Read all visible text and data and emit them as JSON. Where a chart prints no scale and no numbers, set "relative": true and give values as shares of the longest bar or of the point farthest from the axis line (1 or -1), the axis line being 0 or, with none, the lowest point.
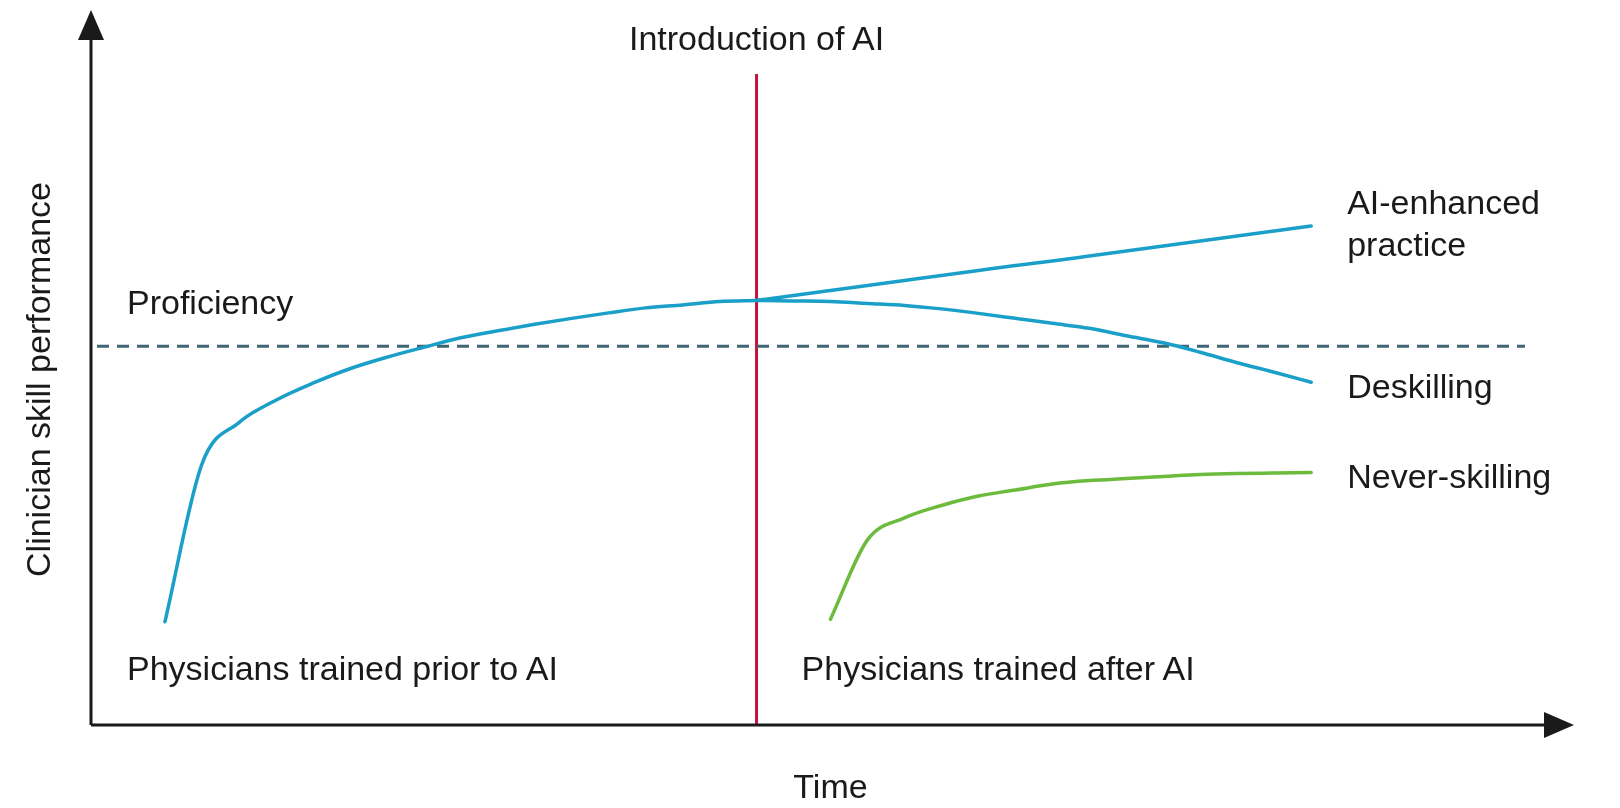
{
  "chart_data": {
    "type": "line",
    "relative": true,
    "xlabel": "Time",
    "ylabel": "Clinician skill performance",
    "tick_labels": false,
    "marker": "none",
    "line_style": "solid",
    "categories": [
      null,
      null,
      null,
      null,
      null,
      null,
      null,
      null,
      null,
      null,
      null,
      null,
      null,
      null,
      null,
      null,
      null,
      null,
      null,
      null,
      null,
      null,
      null,
      null,
      null,
      null,
      null,
      null,
      null,
      null,
      null,
      null,
      null,
      null,
      null,
      null,
      null,
      null,
      null,
      null,
      null
    ],
    "series": [
      {
        "color": "#1a9fc8",
        "values": [
          null,
          null,
          0.207,
          0.523,
          0.606,
          0.651,
          0.685,
          0.714,
          0.737,
          0.757,
          0.776,
          0.79,
          0.803,
          0.815,
          0.826,
          0.836,
          0.842,
          0.849,
          0.851,
          null,
          null,
          null,
          null,
          null,
          null,
          null,
          null,
          null,
          null,
          null,
          null,
          null,
          null,
          null,
          null,
          null,
          null,
          null,
          null,
          null,
          null
        ]
      },
      {
        "name": "AI-enhanced practice",
        "color": "#1a9fc8",
        "values": [
          null,
          null,
          null,
          null,
          null,
          null,
          null,
          null,
          null,
          null,
          null,
          null,
          null,
          null,
          null,
          null,
          null,
          null,
          0.851,
          0.861,
          0.871,
          0.881,
          0.891,
          0.901,
          0.911,
          0.921,
          0.93,
          0.94,
          0.95,
          0.96,
          0.97,
          0.98,
          0.99,
          1,
          null,
          null,
          null,
          null,
          null,
          null,
          null
        ]
      },
      {
        "name": "Deskilling",
        "color": "#1a9fc8",
        "values": [
          null,
          null,
          null,
          null,
          null,
          null,
          null,
          null,
          null,
          null,
          null,
          null,
          null,
          null,
          null,
          null,
          null,
          null,
          0.851,
          0.85,
          0.849,
          0.845,
          0.841,
          0.834,
          0.825,
          0.815,
          0.805,
          0.795,
          0.78,
          0.766,
          0.747,
          0.726,
          0.707,
          0.687,
          null,
          null,
          null,
          null,
          null,
          null,
          null
        ]
      },
      {
        "name": "Never-skilling",
        "color": "#6cbb3c",
        "values": [
          null,
          null,
          null,
          null,
          null,
          null,
          null,
          null,
          null,
          null,
          null,
          null,
          null,
          null,
          null,
          null,
          null,
          null,
          null,
          null,
          0.212,
          0.371,
          0.415,
          0.44,
          0.459,
          0.471,
          0.483,
          0.49,
          0.494,
          0.498,
          0.502,
          0.504,
          0.505,
          0.506,
          null,
          null,
          null,
          null,
          null,
          null,
          null
        ]
      }
    ],
    "ref_lines": [
      {
        "axis": "x",
        "label": "Introduction of AI",
        "color": "#c0143c",
        "line_style": "solid"
      },
      {
        "axis": "y",
        "value": 0.759,
        "label": "Proficiency",
        "color": "#3f6575",
        "line_style": "dashed"
      }
    ],
    "annotations": [
      "Physicians trained prior to AI",
      "Physicians trained after AI"
    ]
  }
}
